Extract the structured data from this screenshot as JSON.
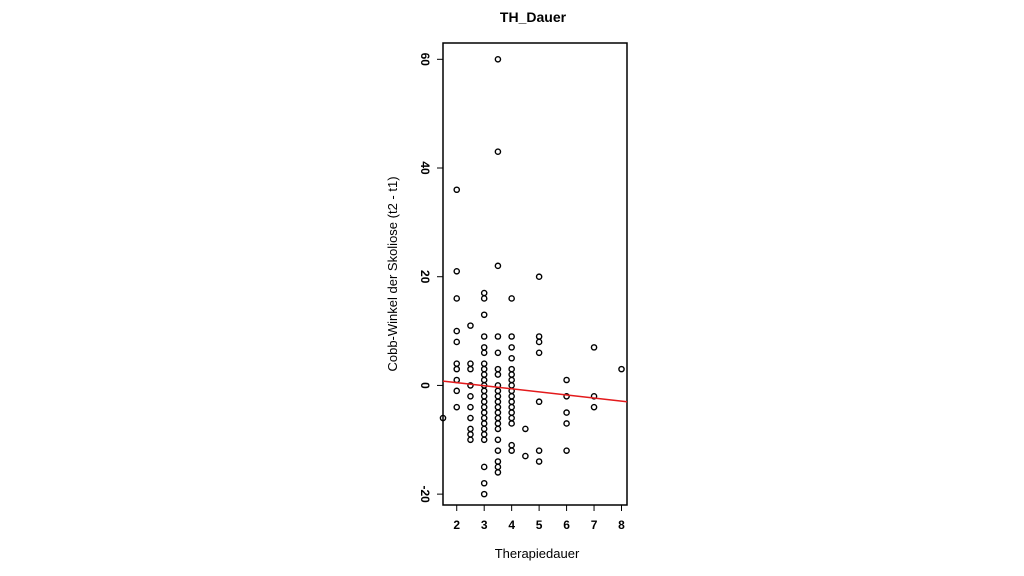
{
  "chart_data": {
    "type": "scatter",
    "title": "TH_Dauer",
    "xlabel": "Therapiedauer",
    "ylabel": "Cobb-Winkel der Skoliose (t2 - t1)",
    "xlim": [
      1.5,
      8.2
    ],
    "ylim": [
      -22,
      63
    ],
    "xticks": [
      2,
      3,
      4,
      5,
      6,
      7,
      8
    ],
    "yticks": [
      -20,
      0,
      20,
      40,
      60
    ],
    "y_tick_rotation": "vertical",
    "grid": false,
    "legend": "none",
    "point_color": "#000000",
    "line_color": "#e31a1c",
    "regression_line": {
      "x": [
        1.5,
        8.2
      ],
      "y": [
        0.8,
        -3.0
      ]
    },
    "points": [
      {
        "x": 1.5,
        "y": -6
      },
      {
        "x": 2,
        "y": 36
      },
      {
        "x": 2,
        "y": 21
      },
      {
        "x": 2,
        "y": 16
      },
      {
        "x": 2,
        "y": 10
      },
      {
        "x": 2,
        "y": 8
      },
      {
        "x": 2,
        "y": 4
      },
      {
        "x": 2,
        "y": 3
      },
      {
        "x": 2,
        "y": 1
      },
      {
        "x": 2,
        "y": -1
      },
      {
        "x": 2,
        "y": -4
      },
      {
        "x": 2.5,
        "y": 11
      },
      {
        "x": 2.5,
        "y": 4
      },
      {
        "x": 2.5,
        "y": 3
      },
      {
        "x": 2.5,
        "y": 0
      },
      {
        "x": 2.5,
        "y": -2
      },
      {
        "x": 2.5,
        "y": -4
      },
      {
        "x": 2.5,
        "y": -6
      },
      {
        "x": 2.5,
        "y": -8
      },
      {
        "x": 2.5,
        "y": -9
      },
      {
        "x": 2.5,
        "y": -10
      },
      {
        "x": 3,
        "y": 17
      },
      {
        "x": 3,
        "y": 16
      },
      {
        "x": 3,
        "y": 13
      },
      {
        "x": 3,
        "y": 9
      },
      {
        "x": 3,
        "y": 7
      },
      {
        "x": 3,
        "y": 6
      },
      {
        "x": 3,
        "y": 4
      },
      {
        "x": 3,
        "y": 3
      },
      {
        "x": 3,
        "y": 2
      },
      {
        "x": 3,
        "y": 1
      },
      {
        "x": 3,
        "y": 0
      },
      {
        "x": 3,
        "y": -1
      },
      {
        "x": 3,
        "y": -2
      },
      {
        "x": 3,
        "y": -3
      },
      {
        "x": 3,
        "y": -4
      },
      {
        "x": 3,
        "y": -5
      },
      {
        "x": 3,
        "y": -6
      },
      {
        "x": 3,
        "y": -7
      },
      {
        "x": 3,
        "y": -8
      },
      {
        "x": 3,
        "y": -9
      },
      {
        "x": 3,
        "y": -10
      },
      {
        "x": 3,
        "y": -15
      },
      {
        "x": 3,
        "y": -18
      },
      {
        "x": 3,
        "y": -20
      },
      {
        "x": 3.5,
        "y": 60
      },
      {
        "x": 3.5,
        "y": 43
      },
      {
        "x": 3.5,
        "y": 22
      },
      {
        "x": 3.5,
        "y": 9
      },
      {
        "x": 3.5,
        "y": 6
      },
      {
        "x": 3.5,
        "y": 3
      },
      {
        "x": 3.5,
        "y": 2
      },
      {
        "x": 3.5,
        "y": 0
      },
      {
        "x": 3.5,
        "y": -1
      },
      {
        "x": 3.5,
        "y": -2
      },
      {
        "x": 3.5,
        "y": -3
      },
      {
        "x": 3.5,
        "y": -4
      },
      {
        "x": 3.5,
        "y": -5
      },
      {
        "x": 3.5,
        "y": -6
      },
      {
        "x": 3.5,
        "y": -7
      },
      {
        "x": 3.5,
        "y": -8
      },
      {
        "x": 3.5,
        "y": -10
      },
      {
        "x": 3.5,
        "y": -12
      },
      {
        "x": 3.5,
        "y": -14
      },
      {
        "x": 3.5,
        "y": -15
      },
      {
        "x": 3.5,
        "y": -16
      },
      {
        "x": 4,
        "y": 16
      },
      {
        "x": 4,
        "y": 9
      },
      {
        "x": 4,
        "y": 7
      },
      {
        "x": 4,
        "y": 5
      },
      {
        "x": 4,
        "y": 3
      },
      {
        "x": 4,
        "y": 2
      },
      {
        "x": 4,
        "y": 1
      },
      {
        "x": 4,
        "y": 0
      },
      {
        "x": 4,
        "y": -1
      },
      {
        "x": 4,
        "y": -2
      },
      {
        "x": 4,
        "y": -3
      },
      {
        "x": 4,
        "y": -4
      },
      {
        "x": 4,
        "y": -5
      },
      {
        "x": 4,
        "y": -6
      },
      {
        "x": 4,
        "y": -7
      },
      {
        "x": 4,
        "y": -11
      },
      {
        "x": 4,
        "y": -12
      },
      {
        "x": 4.5,
        "y": -8
      },
      {
        "x": 4.5,
        "y": -13
      },
      {
        "x": 5,
        "y": 20
      },
      {
        "x": 5,
        "y": 9
      },
      {
        "x": 5,
        "y": 8
      },
      {
        "x": 5,
        "y": 6
      },
      {
        "x": 5,
        "y": -3
      },
      {
        "x": 5,
        "y": -12
      },
      {
        "x": 5,
        "y": -14
      },
      {
        "x": 6,
        "y": 1
      },
      {
        "x": 6,
        "y": -2
      },
      {
        "x": 6,
        "y": -5
      },
      {
        "x": 6,
        "y": -7
      },
      {
        "x": 6,
        "y": -12
      },
      {
        "x": 7,
        "y": 7
      },
      {
        "x": 7,
        "y": -2
      },
      {
        "x": 7,
        "y": -4
      },
      {
        "x": 8,
        "y": 3
      }
    ]
  }
}
